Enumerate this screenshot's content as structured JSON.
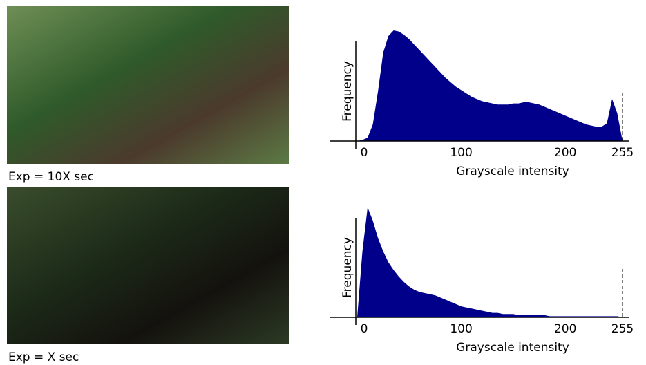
{
  "photos": [
    {
      "caption": "Exp = 10X sec"
    },
    {
      "caption": "Exp = X sec"
    }
  ],
  "chart_data": [
    {
      "type": "area",
      "xlabel": "Grayscale intensity",
      "ylabel": "Frequency",
      "color": "#00008b",
      "x": [
        0,
        5,
        10,
        15,
        20,
        25,
        30,
        35,
        40,
        45,
        50,
        55,
        60,
        65,
        70,
        75,
        80,
        85,
        90,
        95,
        100,
        105,
        110,
        115,
        120,
        125,
        130,
        135,
        140,
        145,
        150,
        155,
        160,
        165,
        170,
        175,
        180,
        185,
        190,
        195,
        200,
        205,
        210,
        215,
        220,
        225,
        230,
        235,
        240,
        245,
        250,
        255
      ],
      "values": [
        0,
        1,
        3,
        15,
        45,
        80,
        95,
        100,
        99,
        96,
        92,
        87,
        82,
        77,
        72,
        67,
        62,
        57,
        53,
        49,
        46,
        43,
        40,
        38,
        36,
        35,
        34,
        33,
        33,
        33,
        34,
        34,
        35,
        35,
        34,
        33,
        31,
        29,
        27,
        25,
        23,
        21,
        19,
        17,
        15,
        14,
        13,
        13,
        16,
        38,
        25,
        0
      ],
      "xlim": [
        0,
        255
      ],
      "ylim": [
        0,
        100
      ],
      "xticks": [
        0,
        100,
        200,
        255
      ],
      "reference_line": 255
    },
    {
      "type": "area",
      "xlabel": "Grayscale intensity",
      "ylabel": "Frequency",
      "color": "#00008b",
      "x": [
        0,
        5,
        10,
        15,
        20,
        25,
        30,
        35,
        40,
        45,
        50,
        55,
        60,
        65,
        70,
        75,
        80,
        85,
        90,
        95,
        100,
        105,
        110,
        115,
        120,
        125,
        130,
        135,
        140,
        145,
        150,
        155,
        160,
        165,
        170,
        175,
        180,
        185,
        190,
        195,
        200,
        205,
        210,
        215,
        220,
        225,
        230,
        235,
        240,
        245,
        250,
        255
      ],
      "values": [
        0,
        60,
        100,
        88,
        72,
        60,
        50,
        43,
        37,
        32,
        28,
        25,
        23,
        22,
        21,
        20,
        18,
        16,
        14,
        12,
        10,
        9,
        8,
        7,
        6,
        5,
        4,
        4,
        3,
        3,
        3,
        2,
        2,
        2,
        2,
        2,
        2,
        1,
        1,
        1,
        1,
        1,
        1,
        1,
        1,
        1,
        1,
        1,
        1,
        1,
        1,
        0
      ],
      "xlim": [
        0,
        255
      ],
      "ylim": [
        0,
        100
      ],
      "xticks": [
        0,
        100,
        200,
        255
      ],
      "reference_line": 255
    }
  ]
}
